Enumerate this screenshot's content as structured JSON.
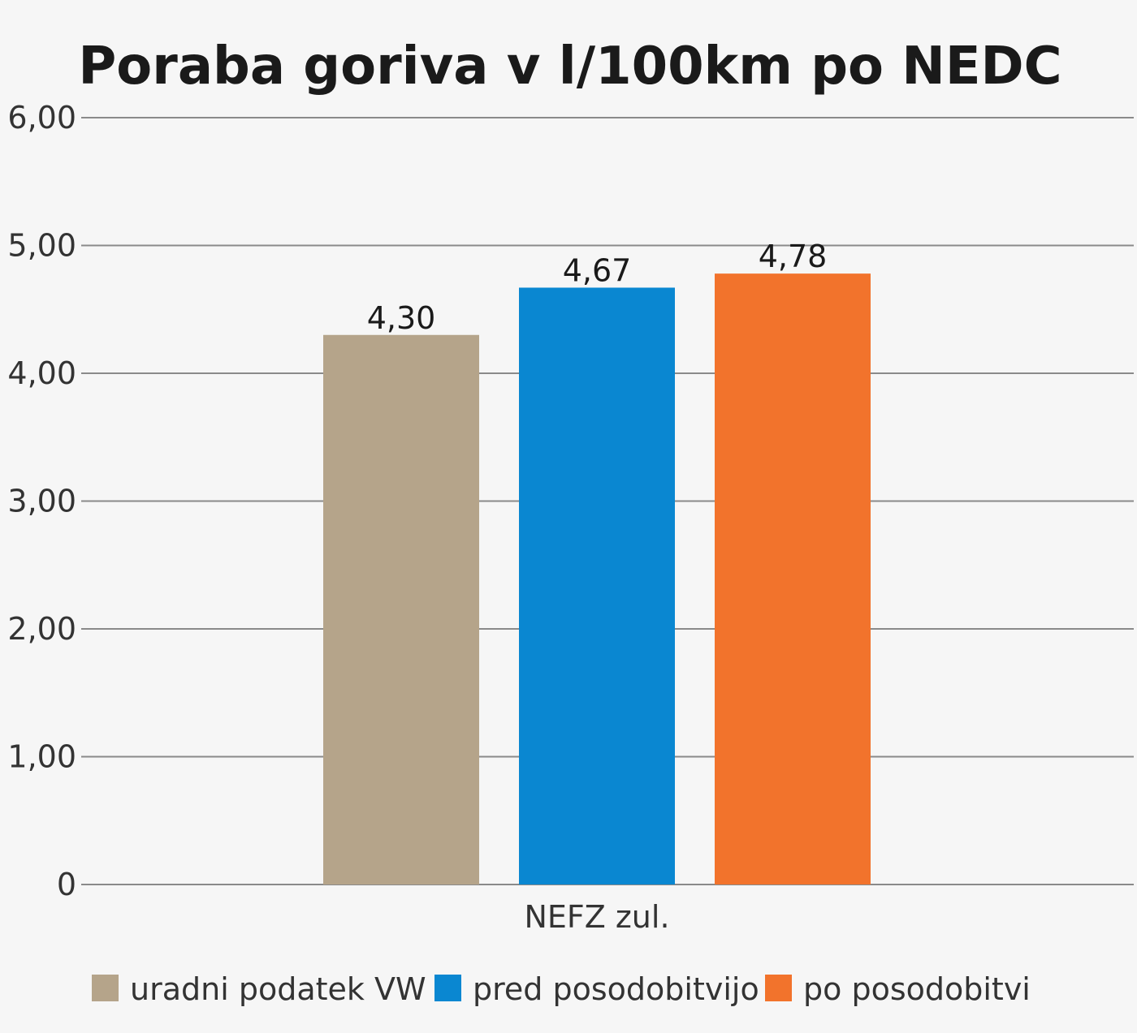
{
  "chart_data": {
    "type": "bar",
    "title": "Poraba goriva v l/100km po NEDC",
    "categories": [
      "NEFZ zul."
    ],
    "series": [
      {
        "name": "uradni podatek VW",
        "values": [
          4.3
        ],
        "label": "4,30",
        "color": "#b5a48a"
      },
      {
        "name": "pred posodobitvijo",
        "values": [
          4.67
        ],
        "label": "4,67",
        "color": "#0a87d1"
      },
      {
        "name": "po posodobitvi",
        "values": [
          4.78
        ],
        "label": "4,78",
        "color": "#f2732c"
      }
    ],
    "ylim": [
      0,
      6
    ],
    "yticks": [
      {
        "value": 0,
        "label": "0"
      },
      {
        "value": 1,
        "label": "1,00"
      },
      {
        "value": 2,
        "label": "2,00"
      },
      {
        "value": 3,
        "label": "3,00"
      },
      {
        "value": 4,
        "label": "4,00"
      },
      {
        "value": 5,
        "label": "5,00"
      },
      {
        "value": 6,
        "label": "6,00"
      }
    ],
    "xlabel": "",
    "ylabel": "",
    "grid": true,
    "legend_position": "bottom"
  }
}
